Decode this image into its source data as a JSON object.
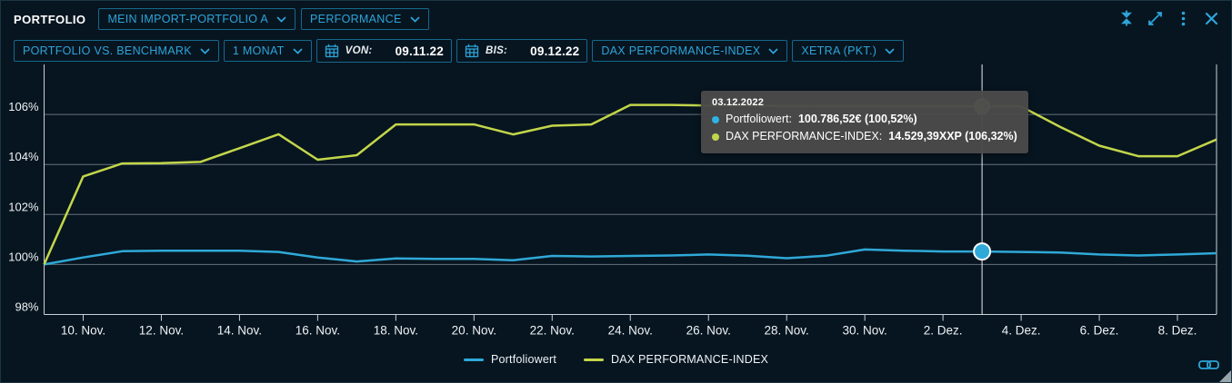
{
  "panel": {
    "title": "PORTFOLIO"
  },
  "toolbar_top": {
    "portfolio_select": "MEIN IMPORT-PORTFOLIO A",
    "view_select": "PERFORMANCE",
    "window_icons": [
      "collapse-vertical-icon",
      "expand-icon",
      "kebab-menu-icon",
      "close-icon"
    ]
  },
  "toolbar_filters": {
    "mode_select": "PORTFOLIO VS. BENCHMARK",
    "range_select": "1 MONAT",
    "date_from": {
      "label": "VON:",
      "value": "09.11.22"
    },
    "date_to": {
      "label": "BIS:",
      "value": "09.12.22"
    },
    "benchmark_select": "DAX PERFORMANCE-INDEX",
    "exchange_select": "XETRA (PKT.)"
  },
  "tooltip": {
    "date": "03.12.2022",
    "rows": [
      {
        "label": "Portfoliowert:",
        "value": "100.786,52€ (100,52%)",
        "color": "#2fb3e4"
      },
      {
        "label": "DAX PERFORMANCE-INDEX:",
        "value": "14.529,39XXP (106,32%)",
        "color": "#c3d64a"
      }
    ]
  },
  "chart_data": {
    "type": "line",
    "title": "",
    "xlabel": "",
    "ylabel": "",
    "x_unit": "days since 09.11.22",
    "x_range_days": [
      0,
      30
    ],
    "x_tick_days": [
      1,
      3,
      5,
      7,
      9,
      11,
      13,
      15,
      17,
      19,
      21,
      23,
      25,
      27,
      29
    ],
    "x_tick_labels": [
      "10. Nov.",
      "12. Nov.",
      "14. Nov.",
      "16. Nov.",
      "18. Nov.",
      "20. Nov.",
      "22. Nov.",
      "24. Nov.",
      "26. Nov.",
      "28. Nov.",
      "30. Nov.",
      "2. Dez.",
      "4. Dez.",
      "6. Dez.",
      "8. Dez."
    ],
    "y_ticks": [
      98,
      100,
      102,
      104,
      106
    ],
    "y_tick_labels": [
      "98%",
      "100%",
      "102%",
      "104%",
      "106%"
    ],
    "ylim": [
      98,
      108
    ],
    "grid": "horizontal",
    "legend_position": "bottom-center",
    "series": [
      {
        "name": "Portfoliowert",
        "color": "#2fa9d8",
        "values_pct": [
          100.0,
          100.28,
          100.53,
          100.55,
          100.55,
          100.55,
          100.5,
          100.28,
          100.12,
          100.24,
          100.22,
          100.22,
          100.17,
          100.34,
          100.32,
          100.34,
          100.36,
          100.4,
          100.35,
          100.25,
          100.35,
          100.6,
          100.55,
          100.52,
          100.52,
          100.5,
          100.48,
          100.4,
          100.36,
          100.4,
          100.45
        ]
      },
      {
        "name": "DAX PERFORMANCE-INDEX",
        "color": "#c3d64a",
        "values_pct": [
          100.0,
          103.52,
          104.04,
          104.05,
          104.1,
          104.65,
          105.21,
          104.19,
          104.37,
          105.6,
          105.6,
          105.6,
          105.2,
          105.55,
          105.6,
          106.38,
          106.38,
          106.36,
          106.35,
          106.34,
          106.33,
          106.33,
          106.32,
          106.32,
          106.32,
          106.32,
          105.5,
          104.75,
          104.33,
          104.33,
          105.0
        ]
      }
    ],
    "crosshair_day": 24,
    "markers": [
      {
        "series": 0,
        "day": 24,
        "value_pct": 100.52
      },
      {
        "series": 1,
        "day": 24,
        "value_pct": 106.32
      }
    ]
  },
  "colors": {
    "accent": "#2da4d9",
    "accent_border": "#16688d",
    "panel_bg": "#071520",
    "axis": "#c9d2d8",
    "grid": "rgba(205,215,221,0.48)",
    "crosshair": "#e8eef1",
    "tooltip_bg": "#4a4a4a",
    "text": "#ffffff"
  }
}
